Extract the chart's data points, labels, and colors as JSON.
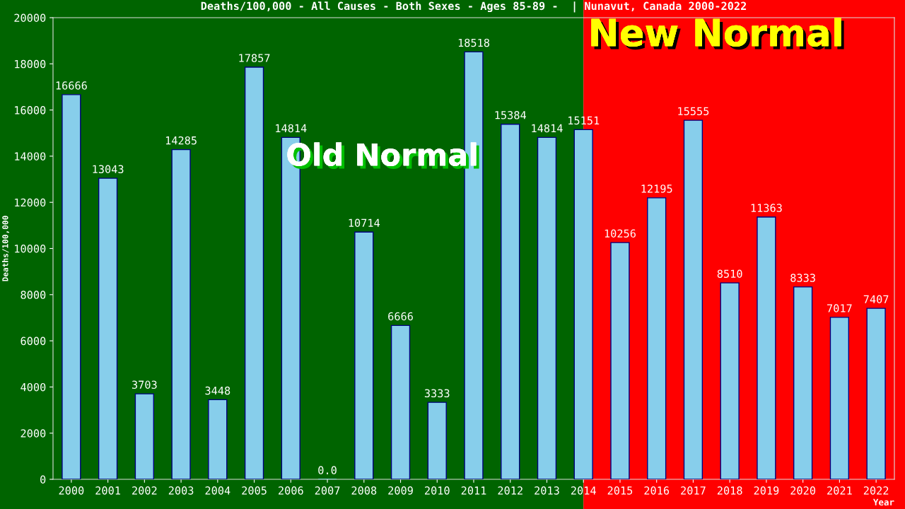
{
  "chart_data": {
    "type": "bar",
    "title": "Deaths/100,000 - All Causes - Both Sexes - Ages 85-89 -  | Nunavut, Canada 2000-2022",
    "xlabel": "Year",
    "ylabel": "Deaths/100,000",
    "categories": [
      "2000",
      "2001",
      "2002",
      "2003",
      "2004",
      "2005",
      "2006",
      "2007",
      "2008",
      "2009",
      "2010",
      "2011",
      "2012",
      "2013",
      "2014",
      "2015",
      "2016",
      "2017",
      "2018",
      "2019",
      "2020",
      "2021",
      "2022"
    ],
    "values": [
      16666,
      13043,
      3703,
      14285,
      3448,
      17857,
      14814,
      0,
      10714,
      6666,
      3333,
      18518,
      15384,
      14814,
      15151,
      10256,
      12195,
      15555,
      8510,
      11363,
      8333,
      7017,
      7407
    ],
    "value_labels": [
      "16666",
      "13043",
      "3703",
      "14285",
      "3448",
      "17857",
      "14814",
      "0.0",
      "10714",
      "6666",
      "3333",
      "18518",
      "15384",
      "14814",
      "15151",
      "10256",
      "12195",
      "15555",
      "8510",
      "11363",
      "8333",
      "7017",
      "7407"
    ],
    "color": "#87ceeb",
    "ylim": [
      0,
      20000
    ],
    "yticks": [
      0,
      2000,
      4000,
      6000,
      8000,
      10000,
      12000,
      14000,
      16000,
      18000,
      20000
    ],
    "bands": [
      {
        "axis": "x",
        "from": "2000",
        "to": "2014",
        "label": "Old Normal",
        "color": "#006400"
      },
      {
        "axis": "x",
        "from": "2014",
        "to": "2022",
        "label": "New Normal",
        "color": "#ff0000"
      }
    ],
    "grid": false
  }
}
